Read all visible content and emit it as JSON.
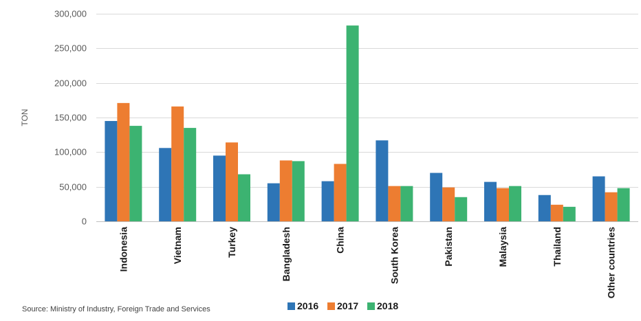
{
  "chart_data": {
    "type": "bar",
    "title": "",
    "xlabel": "",
    "ylabel": "TON",
    "categories": [
      "Indonesia",
      "Vietnam",
      "Turkey",
      "Bangladesh",
      "China",
      "South Korea",
      "Pakistan",
      "Malaysia",
      "Thailand",
      "Other countries"
    ],
    "series": [
      {
        "name": "2016",
        "color": "#2e75b6",
        "values": [
          145000,
          106000,
          95000,
          55000,
          58000,
          117000,
          70000,
          57000,
          38000,
          65000
        ]
      },
      {
        "name": "2017",
        "color": "#ed7d31",
        "values": [
          171000,
          166000,
          114000,
          88000,
          83000,
          51000,
          49000,
          48000,
          24000,
          42000
        ]
      },
      {
        "name": "2018",
        "color": "#3cb371",
        "values": [
          138000,
          135000,
          68000,
          87000,
          283000,
          51000,
          35000,
          51000,
          21000,
          48000
        ]
      }
    ],
    "ylim": [
      0,
      300000
    ],
    "yticks": [
      0,
      50000,
      100000,
      150000,
      200000,
      250000,
      300000
    ],
    "ytick_labels": [
      "0",
      "50,000",
      "100,000",
      "150,000",
      "200,000",
      "250,000",
      "300,000"
    ],
    "grid": true,
    "legend_position": "bottom"
  },
  "source_note": "Source: Ministry of Industry, Foreign Trade and Services"
}
